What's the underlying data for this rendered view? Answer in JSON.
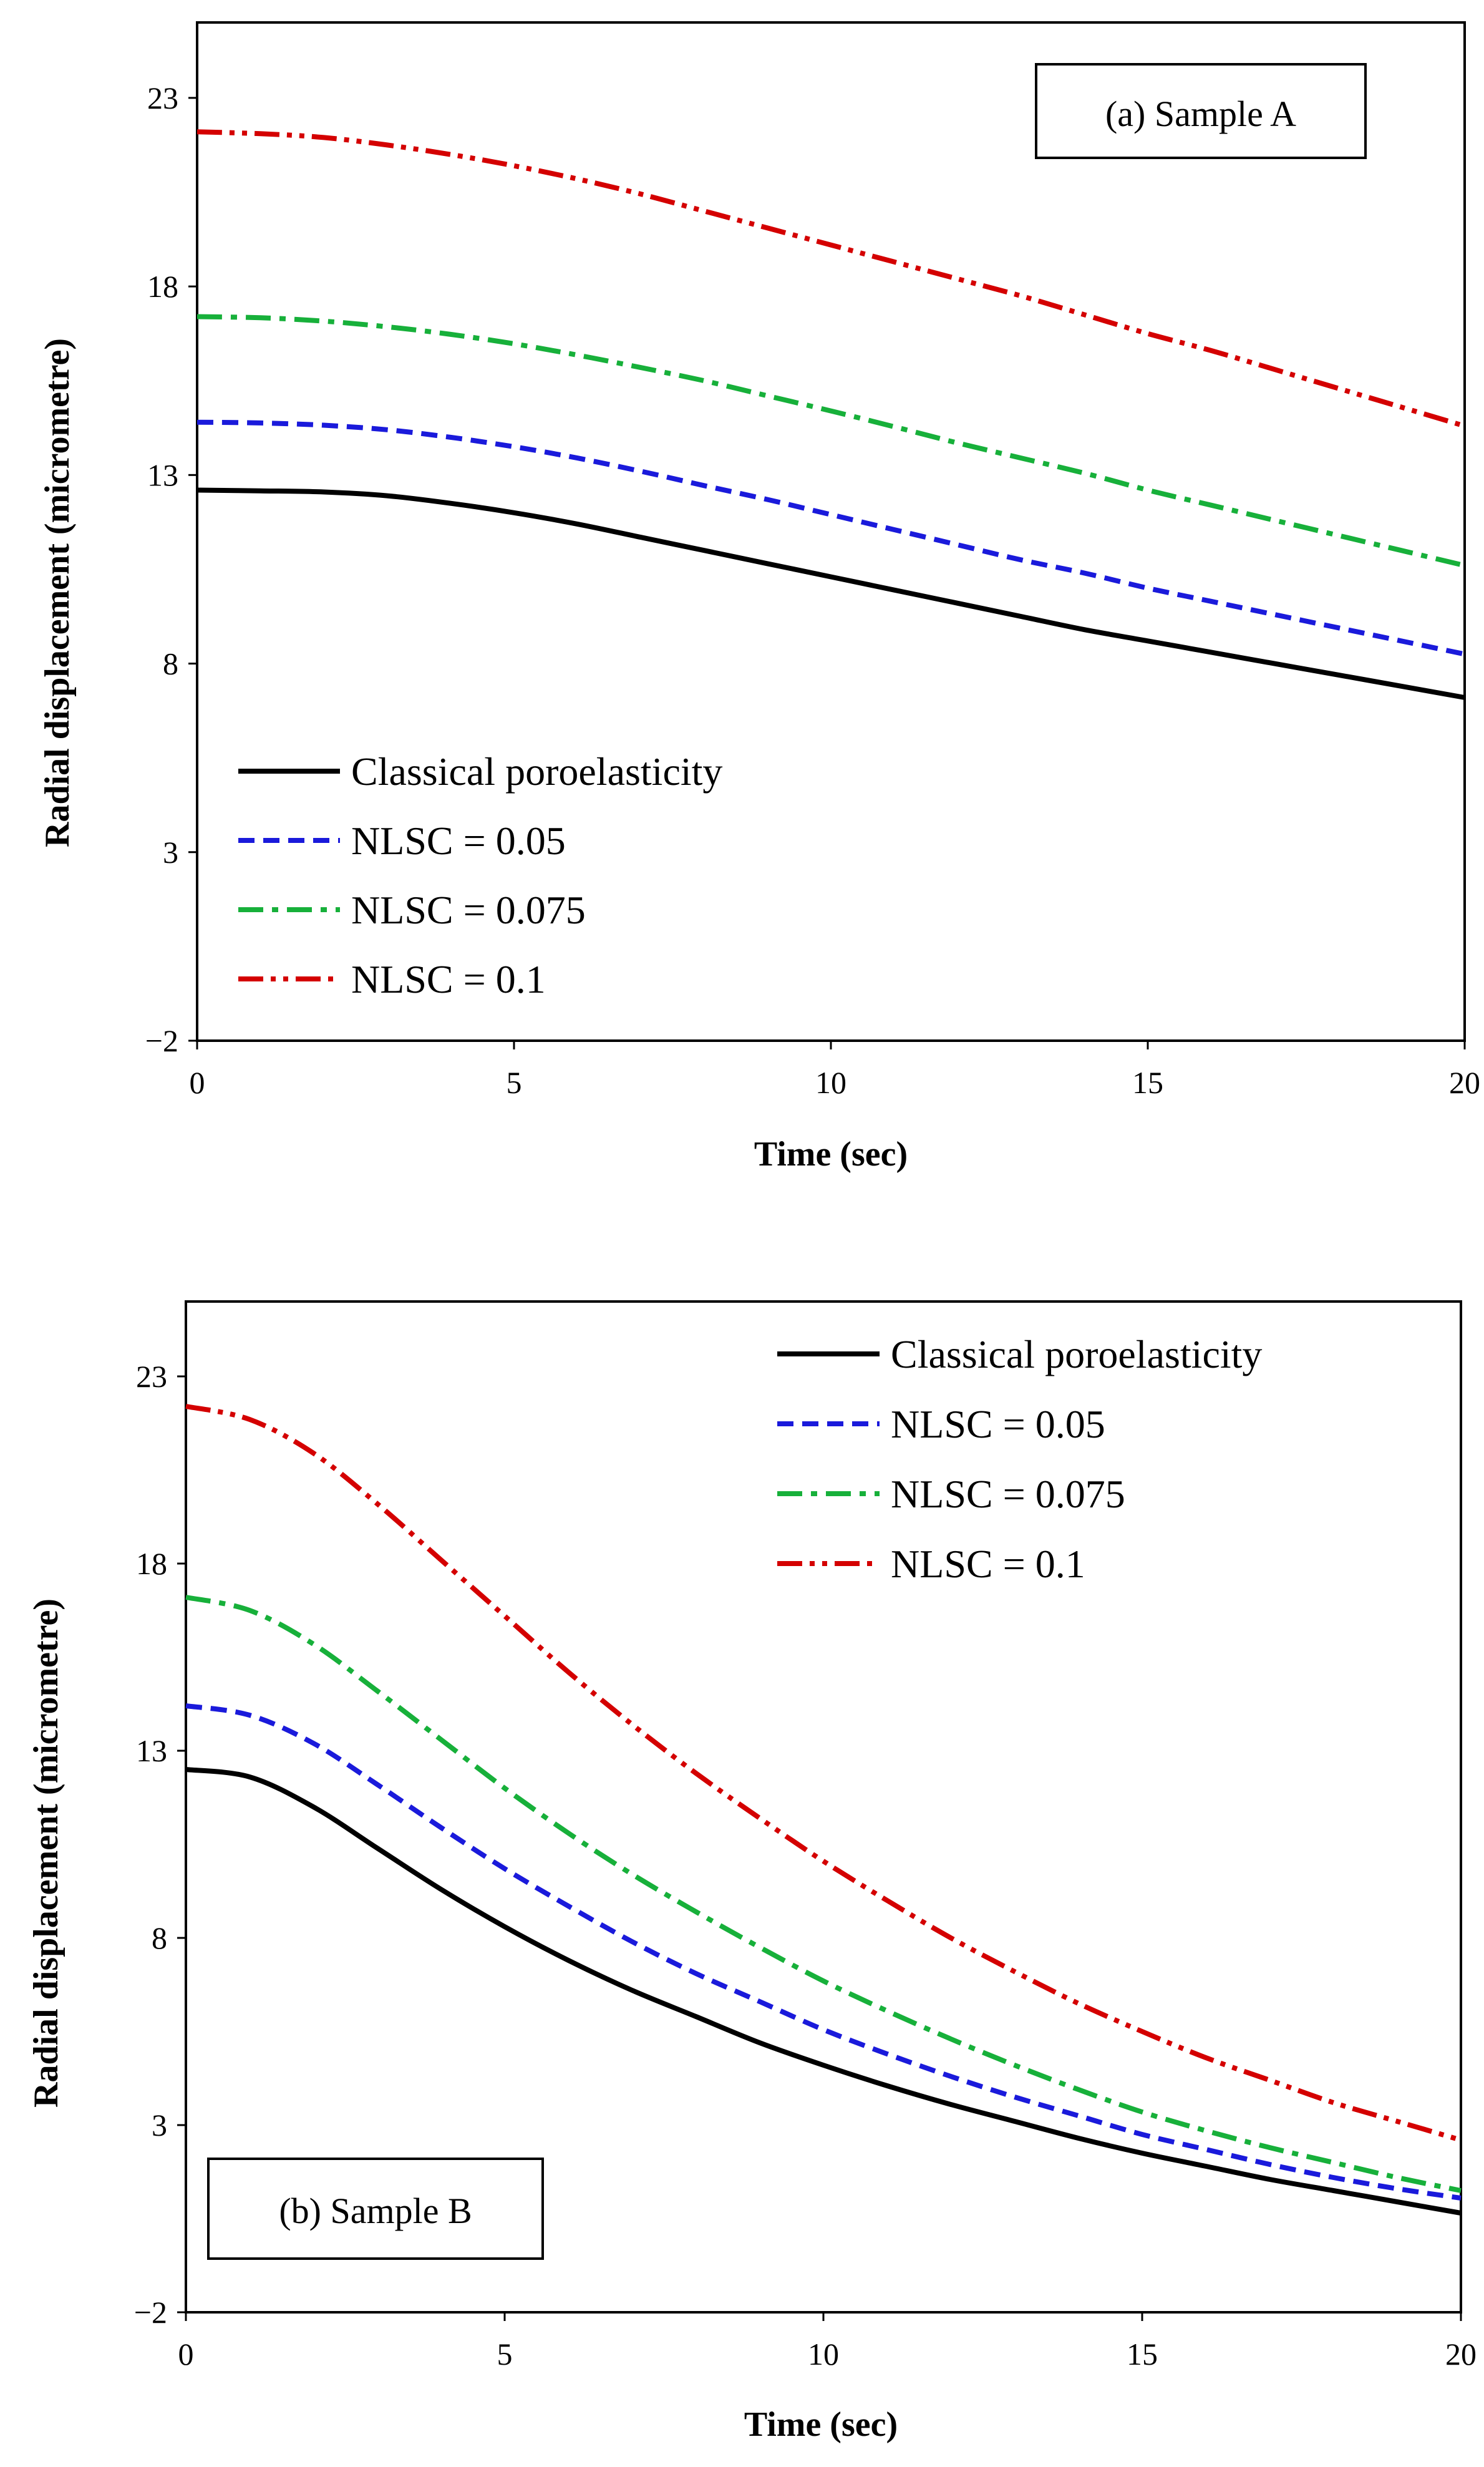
{
  "colors": {
    "classical": "#000000",
    "nlsc_005": "#1a1adb",
    "nlsc_0075": "#17b03a",
    "nlsc_01": "#d40000"
  },
  "chart_data": [
    {
      "type": "line",
      "panel_label": "(a) Sample A",
      "xlabel": "Time (sec)",
      "ylabel": "Radial displacement (micrometre)",
      "xlim": [
        0,
        20
      ],
      "ylim": [
        -2,
        25
      ],
      "x_ticks": [
        "0",
        "5",
        "10",
        "15",
        "20"
      ],
      "y_ticks": [
        "−2",
        "3",
        "8",
        "13",
        "18",
        "23"
      ],
      "x_tick_values": [
        0,
        5,
        10,
        15,
        20
      ],
      "y_tick_values": [
        -2,
        3,
        8,
        13,
        18,
        23
      ],
      "x": [
        0,
        1,
        2,
        3,
        4,
        5,
        6,
        7,
        8,
        9,
        10,
        11,
        12,
        13,
        14,
        15,
        16,
        17,
        18,
        19,
        20
      ],
      "series": [
        {
          "name": "Classical poroelasticity",
          "style": "solid",
          "values": [
            12.6,
            12.58,
            12.55,
            12.45,
            12.25,
            12.0,
            11.7,
            11.35,
            11.0,
            10.65,
            10.3,
            9.95,
            9.6,
            9.25,
            8.9,
            8.6,
            8.3,
            8.0,
            7.7,
            7.4,
            7.1
          ]
        },
        {
          "name": "NLSC = 0.05",
          "style": "dash",
          "values": [
            14.4,
            14.38,
            14.32,
            14.2,
            14.0,
            13.75,
            13.45,
            13.1,
            12.72,
            12.35,
            11.95,
            11.55,
            11.15,
            10.75,
            10.4,
            10.0,
            9.65,
            9.3,
            8.95,
            8.6,
            8.25
          ]
        },
        {
          "name": "NLSC = 0.075",
          "style": "dashdot",
          "values": [
            17.2,
            17.17,
            17.08,
            16.93,
            16.73,
            16.48,
            16.18,
            15.85,
            15.5,
            15.1,
            14.7,
            14.28,
            13.85,
            13.45,
            13.05,
            12.6,
            12.2,
            11.8,
            11.4,
            11.0,
            10.6
          ]
        },
        {
          "name": "NLSC = 0.1",
          "style": "dashdotdot",
          "values": [
            22.1,
            22.05,
            21.95,
            21.75,
            21.5,
            21.2,
            20.85,
            20.45,
            20.0,
            19.55,
            19.1,
            18.65,
            18.2,
            17.75,
            17.25,
            16.75,
            16.3,
            15.8,
            15.3,
            14.8,
            14.3
          ]
        }
      ],
      "legend_placement": "lower-left"
    },
    {
      "type": "line",
      "panel_label": "(b) Sample B",
      "xlabel": "Time (sec)",
      "ylabel": "Radial displacement (micrometre)",
      "xlim": [
        0,
        20
      ],
      "ylim": [
        -2,
        25
      ],
      "x_ticks": [
        "0",
        "5",
        "10",
        "15",
        "20"
      ],
      "y_ticks": [
        "−2",
        "3",
        "8",
        "13",
        "18",
        "23"
      ],
      "x_tick_values": [
        0,
        5,
        10,
        15,
        20
      ],
      "y_tick_values": [
        -2,
        3,
        8,
        13,
        18,
        23
      ],
      "x": [
        0,
        1,
        2,
        3,
        4,
        5,
        6,
        7,
        8,
        9,
        10,
        11,
        12,
        13,
        14,
        15,
        16,
        17,
        18,
        19,
        20
      ],
      "series": [
        {
          "name": "Classical poroelasticity",
          "style": "solid",
          "values": [
            12.5,
            12.3,
            11.5,
            10.4,
            9.3,
            8.3,
            7.4,
            6.6,
            5.9,
            5.2,
            4.6,
            4.05,
            3.55,
            3.1,
            2.65,
            2.25,
            1.9,
            1.55,
            1.25,
            0.95,
            0.65
          ]
        },
        {
          "name": "NLSC = 0.05",
          "style": "dash",
          "values": [
            14.2,
            13.95,
            13.2,
            12.1,
            10.95,
            9.85,
            8.85,
            7.9,
            7.05,
            6.3,
            5.55,
            4.9,
            4.3,
            3.75,
            3.25,
            2.75,
            2.35,
            1.95,
            1.6,
            1.3,
            1.05
          ]
        },
        {
          "name": "NLSC = 0.075",
          "style": "dashdot",
          "values": [
            17.1,
            16.75,
            15.85,
            14.6,
            13.3,
            12.0,
            10.8,
            9.7,
            8.7,
            7.75,
            6.85,
            6.05,
            5.3,
            4.6,
            3.95,
            3.35,
            2.85,
            2.4,
            2.0,
            1.6,
            1.25
          ]
        },
        {
          "name": "NLSC = 0.1",
          "style": "dashdotdot",
          "values": [
            22.2,
            21.85,
            20.95,
            19.6,
            18.1,
            16.6,
            15.1,
            13.7,
            12.4,
            11.2,
            10.05,
            9.0,
            8.0,
            7.1,
            6.25,
            5.5,
            4.8,
            4.2,
            3.6,
            3.1,
            2.6
          ]
        }
      ],
      "legend_placement": "top-right"
    }
  ]
}
